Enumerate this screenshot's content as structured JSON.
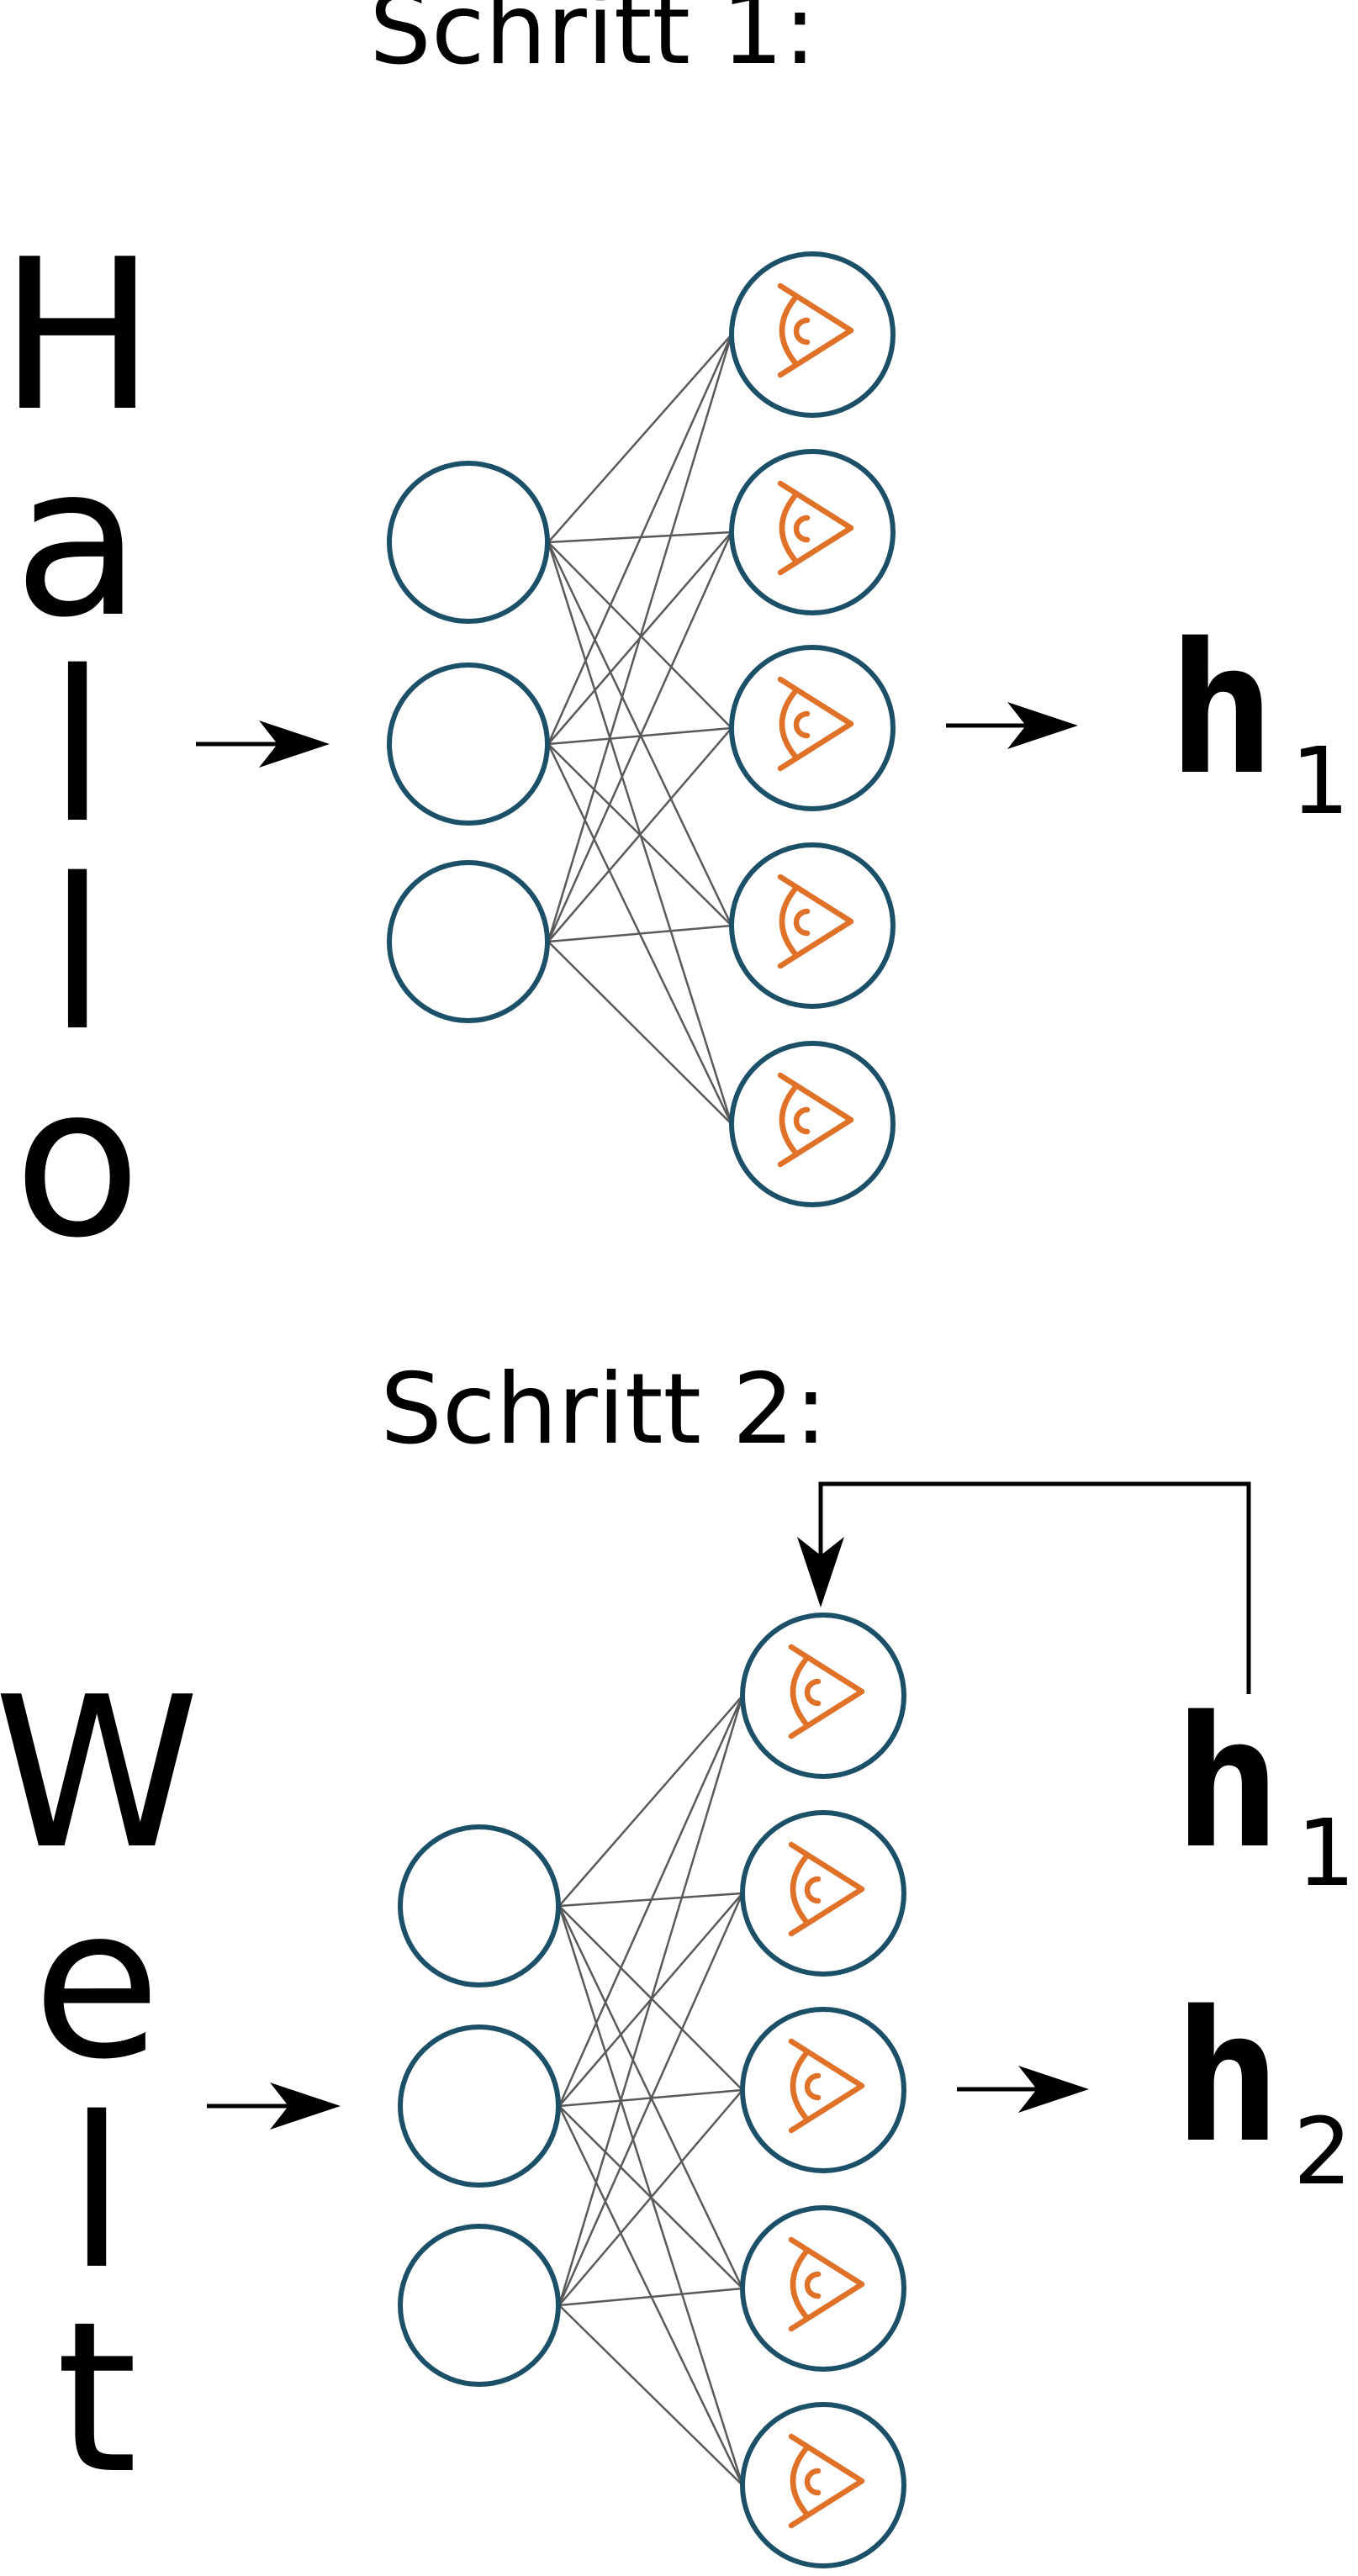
{
  "step1": {
    "title": "Schritt 1:",
    "letters": [
      "H",
      "a",
      "l",
      "l",
      "o"
    ],
    "output_var": "h",
    "output_sub": "1"
  },
  "step2": {
    "title": "Schritt 2:",
    "letters": [
      "W",
      "e",
      "l",
      "t"
    ],
    "feedback_var": "h",
    "feedback_sub": "1",
    "output_var": "h",
    "output_sub": "2"
  },
  "colors": {
    "node_stroke": "#1c4f68",
    "eye_icon": "#e07128",
    "connection": "#5a5a5a"
  },
  "network": {
    "input_nodes": 3,
    "hidden_nodes": 5,
    "hidden_node_icon": "eye-icon"
  }
}
